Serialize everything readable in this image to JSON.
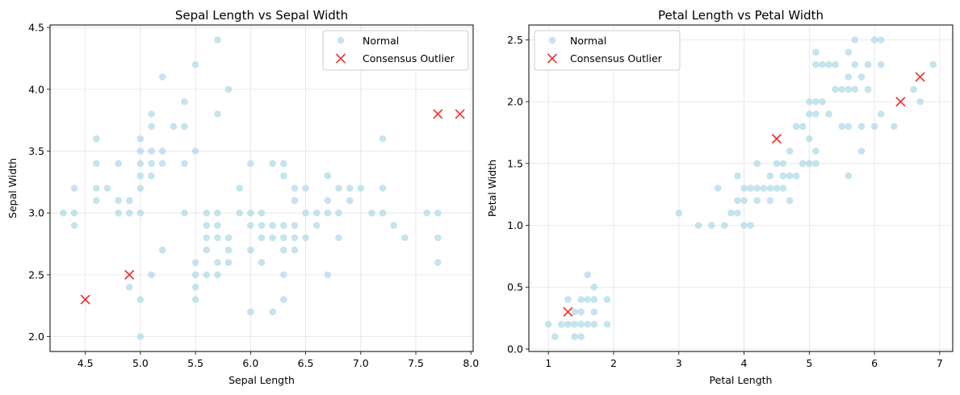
{
  "chart_data": [
    {
      "type": "scatter",
      "title": "Sepal Length vs Sepal Width",
      "xlabel": "Sepal Length",
      "ylabel": "Sepal Width",
      "xlim": [
        4.18,
        8.02
      ],
      "ylim": [
        1.88,
        4.52
      ],
      "xticks": [
        "4.5",
        "5.0",
        "5.5",
        "6.0",
        "6.5",
        "7.0",
        "7.5",
        "8.0"
      ],
      "xtick_values": [
        4.5,
        5.0,
        5.5,
        6.0,
        6.5,
        7.0,
        7.5,
        8.0
      ],
      "yticks": [
        "2.0",
        "2.5",
        "3.0",
        "3.5",
        "4.0",
        "4.5"
      ],
      "ytick_values": [
        2.0,
        2.5,
        3.0,
        3.5,
        4.0,
        4.5
      ],
      "grid": true,
      "legend_position": "top-right",
      "series": [
        {
          "name": "Normal",
          "color": "#add8e6",
          "marker": "circle",
          "points": [
            [
              4.3,
              3.0
            ],
            [
              4.4,
              3.0
            ],
            [
              4.4,
              2.9
            ],
            [
              4.4,
              3.2
            ],
            [
              4.6,
              3.6
            ],
            [
              4.6,
              3.4
            ],
            [
              4.6,
              3.2
            ],
            [
              4.6,
              3.1
            ],
            [
              4.7,
              3.2
            ],
            [
              4.8,
              3.4
            ],
            [
              4.8,
              3.1
            ],
            [
              4.8,
              3.0
            ],
            [
              4.9,
              3.1
            ],
            [
              4.9,
              3.0
            ],
            [
              4.9,
              2.4
            ],
            [
              5.0,
              3.6
            ],
            [
              5.0,
              3.4
            ],
            [
              5.0,
              3.5
            ],
            [
              5.0,
              3.3
            ],
            [
              5.0,
              3.2
            ],
            [
              5.0,
              3.0
            ],
            [
              5.0,
              2.3
            ],
            [
              5.0,
              2.0
            ],
            [
              5.1,
              3.5
            ],
            [
              5.1,
              3.8
            ],
            [
              5.1,
              3.7
            ],
            [
              5.1,
              3.4
            ],
            [
              5.1,
              3.3
            ],
            [
              5.1,
              2.5
            ],
            [
              5.2,
              4.1
            ],
            [
              5.2,
              3.5
            ],
            [
              5.2,
              3.4
            ],
            [
              5.2,
              2.7
            ],
            [
              5.3,
              3.7
            ],
            [
              5.4,
              3.9
            ],
            [
              5.4,
              3.7
            ],
            [
              5.4,
              3.4
            ],
            [
              5.4,
              3.0
            ],
            [
              5.5,
              4.2
            ],
            [
              5.5,
              3.5
            ],
            [
              5.5,
              2.6
            ],
            [
              5.5,
              2.5
            ],
            [
              5.5,
              2.4
            ],
            [
              5.5,
              2.3
            ],
            [
              5.6,
              3.0
            ],
            [
              5.6,
              2.9
            ],
            [
              5.6,
              2.8
            ],
            [
              5.6,
              2.7
            ],
            [
              5.6,
              2.5
            ],
            [
              5.7,
              4.4
            ],
            [
              5.7,
              3.8
            ],
            [
              5.7,
              3.0
            ],
            [
              5.7,
              2.9
            ],
            [
              5.7,
              2.8
            ],
            [
              5.7,
              2.6
            ],
            [
              5.7,
              2.5
            ],
            [
              5.8,
              4.0
            ],
            [
              5.8,
              2.8
            ],
            [
              5.8,
              2.7
            ],
            [
              5.8,
              2.6
            ],
            [
              5.9,
              3.2
            ],
            [
              5.9,
              3.0
            ],
            [
              6.0,
              3.4
            ],
            [
              6.0,
              3.0
            ],
            [
              6.0,
              2.9
            ],
            [
              6.0,
              2.7
            ],
            [
              6.0,
              2.2
            ],
            [
              6.1,
              3.0
            ],
            [
              6.1,
              2.9
            ],
            [
              6.1,
              2.8
            ],
            [
              6.1,
              2.6
            ],
            [
              6.2,
              3.4
            ],
            [
              6.2,
              2.9
            ],
            [
              6.2,
              2.8
            ],
            [
              6.2,
              2.2
            ],
            [
              6.3,
              3.4
            ],
            [
              6.3,
              3.3
            ],
            [
              6.3,
              2.9
            ],
            [
              6.3,
              2.8
            ],
            [
              6.3,
              2.7
            ],
            [
              6.3,
              2.5
            ],
            [
              6.3,
              2.3
            ],
            [
              6.4,
              3.2
            ],
            [
              6.4,
              3.1
            ],
            [
              6.4,
              2.9
            ],
            [
              6.4,
              2.8
            ],
            [
              6.4,
              2.7
            ],
            [
              6.5,
              3.2
            ],
            [
              6.5,
              3.0
            ],
            [
              6.5,
              2.8
            ],
            [
              6.6,
              3.0
            ],
            [
              6.6,
              2.9
            ],
            [
              6.7,
              3.3
            ],
            [
              6.7,
              3.1
            ],
            [
              6.7,
              3.0
            ],
            [
              6.7,
              2.5
            ],
            [
              6.8,
              3.2
            ],
            [
              6.8,
              3.0
            ],
            [
              6.8,
              2.8
            ],
            [
              6.9,
              3.2
            ],
            [
              6.9,
              3.1
            ],
            [
              7.0,
              3.2
            ],
            [
              7.1,
              3.0
            ],
            [
              7.2,
              3.6
            ],
            [
              7.2,
              3.2
            ],
            [
              7.2,
              3.0
            ],
            [
              7.3,
              2.9
            ],
            [
              7.4,
              2.8
            ],
            [
              7.6,
              3.0
            ],
            [
              7.7,
              3.0
            ],
            [
              7.7,
              2.8
            ],
            [
              7.7,
              2.6
            ]
          ]
        },
        {
          "name": "Consensus Outlier",
          "color": "#ee3333",
          "marker": "x",
          "points": [
            [
              4.5,
              2.3
            ],
            [
              4.9,
              2.5
            ],
            [
              7.7,
              3.8
            ],
            [
              7.9,
              3.8
            ]
          ]
        }
      ]
    },
    {
      "type": "scatter",
      "title": "Petal Length vs Petal Width",
      "xlabel": "Petal Length",
      "ylabel": "Petal Width",
      "xlim": [
        0.7,
        7.2
      ],
      "ylim": [
        -0.02,
        2.62
      ],
      "xticks": [
        "1",
        "2",
        "3",
        "4",
        "5",
        "6",
        "7"
      ],
      "xtick_values": [
        1,
        2,
        3,
        4,
        5,
        6,
        7
      ],
      "yticks": [
        "0.0",
        "0.5",
        "1.0",
        "1.5",
        "2.0",
        "2.5"
      ],
      "ytick_values": [
        0.0,
        0.5,
        1.0,
        1.5,
        2.0,
        2.5
      ],
      "grid": true,
      "legend_position": "top-left",
      "series": [
        {
          "name": "Normal",
          "color": "#add8e6",
          "marker": "circle",
          "points": [
            [
              1.0,
              0.2
            ],
            [
              1.1,
              0.1
            ],
            [
              1.2,
              0.2
            ],
            [
              1.3,
              0.2
            ],
            [
              1.3,
              0.4
            ],
            [
              1.4,
              0.2
            ],
            [
              1.4,
              0.3
            ],
            [
              1.4,
              0.1
            ],
            [
              1.5,
              0.2
            ],
            [
              1.5,
              0.4
            ],
            [
              1.5,
              0.1
            ],
            [
              1.5,
              0.3
            ],
            [
              1.6,
              0.2
            ],
            [
              1.6,
              0.6
            ],
            [
              1.6,
              0.4
            ],
            [
              1.7,
              0.2
            ],
            [
              1.7,
              0.4
            ],
            [
              1.7,
              0.5
            ],
            [
              1.7,
              0.3
            ],
            [
              1.9,
              0.2
            ],
            [
              1.9,
              0.4
            ],
            [
              3.0,
              1.1
            ],
            [
              3.3,
              1.0
            ],
            [
              3.5,
              1.0
            ],
            [
              3.6,
              1.3
            ],
            [
              3.7,
              1.0
            ],
            [
              3.8,
              1.1
            ],
            [
              3.9,
              1.1
            ],
            [
              3.9,
              1.2
            ],
            [
              3.9,
              1.4
            ],
            [
              4.0,
              1.3
            ],
            [
              4.0,
              1.0
            ],
            [
              4.0,
              1.2
            ],
            [
              4.1,
              1.3
            ],
            [
              4.1,
              1.0
            ],
            [
              4.2,
              1.3
            ],
            [
              4.2,
              1.2
            ],
            [
              4.2,
              1.5
            ],
            [
              4.3,
              1.3
            ],
            [
              4.4,
              1.4
            ],
            [
              4.4,
              1.3
            ],
            [
              4.4,
              1.2
            ],
            [
              4.5,
              1.5
            ],
            [
              4.5,
              1.3
            ],
            [
              4.6,
              1.5
            ],
            [
              4.6,
              1.4
            ],
            [
              4.6,
              1.3
            ],
            [
              4.7,
              1.4
            ],
            [
              4.7,
              1.6
            ],
            [
              4.7,
              1.2
            ],
            [
              4.8,
              1.8
            ],
            [
              4.8,
              1.4
            ],
            [
              4.9,
              1.5
            ],
            [
              4.9,
              1.8
            ],
            [
              5.0,
              1.7
            ],
            [
              5.0,
              1.5
            ],
            [
              5.0,
              2.0
            ],
            [
              5.0,
              1.9
            ],
            [
              5.1,
              1.6
            ],
            [
              5.1,
              1.9
            ],
            [
              5.1,
              2.0
            ],
            [
              5.1,
              2.3
            ],
            [
              5.1,
              2.4
            ],
            [
              5.1,
              1.5
            ],
            [
              5.2,
              2.0
            ],
            [
              5.2,
              2.3
            ],
            [
              5.3,
              1.9
            ],
            [
              5.3,
              2.3
            ],
            [
              5.4,
              2.1
            ],
            [
              5.4,
              2.3
            ],
            [
              5.5,
              1.8
            ],
            [
              5.5,
              2.1
            ],
            [
              5.6,
              2.4
            ],
            [
              5.6,
              2.2
            ],
            [
              5.6,
              1.8
            ],
            [
              5.6,
              2.1
            ],
            [
              5.6,
              1.4
            ],
            [
              5.7,
              2.5
            ],
            [
              5.7,
              2.3
            ],
            [
              5.7,
              2.1
            ],
            [
              5.8,
              2.2
            ],
            [
              5.8,
              1.8
            ],
            [
              5.8,
              1.6
            ],
            [
              5.9,
              2.3
            ],
            [
              5.9,
              2.1
            ],
            [
              6.0,
              2.5
            ],
            [
              6.0,
              1.8
            ],
            [
              6.1,
              2.5
            ],
            [
              6.1,
              2.3
            ],
            [
              6.1,
              1.9
            ],
            [
              6.3,
              1.8
            ],
            [
              6.6,
              2.1
            ],
            [
              6.7,
              2.0
            ],
            [
              6.9,
              2.3
            ]
          ]
        },
        {
          "name": "Consensus Outlier",
          "color": "#ee3333",
          "marker": "x",
          "points": [
            [
              1.3,
              0.3
            ],
            [
              4.5,
              1.7
            ],
            [
              6.4,
              2.0
            ],
            [
              6.7,
              2.2
            ]
          ]
        }
      ]
    }
  ]
}
